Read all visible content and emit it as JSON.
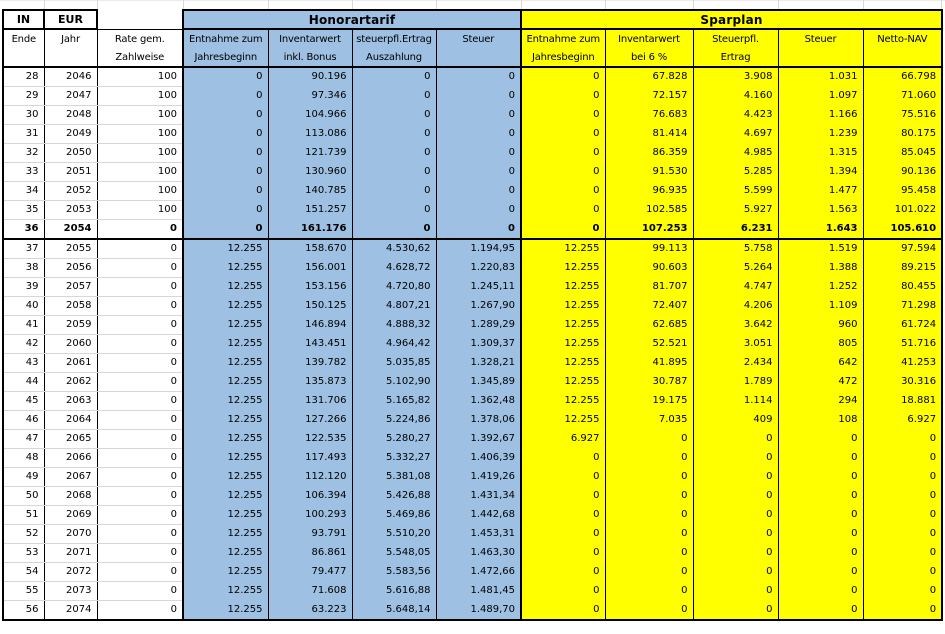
{
  "colors": {
    "honorartarif_fill": "#9EC1E3",
    "sparplan_fill": "#FFFF00",
    "grid_line": "#000000",
    "faint_row_line": "#D7D7D7"
  },
  "unit_header": {
    "col1": "IN",
    "col2": "EUR"
  },
  "row_header": {
    "ende": "Ende",
    "jahr": "Jahr",
    "rate_line1": "Rate gem.",
    "rate_line2": "Zahlweise"
  },
  "sections": {
    "honorartarif": {
      "title": "Honorartarif",
      "columns": [
        [
          "Entnahme zum",
          "Jahresbeginn"
        ],
        [
          "Inventarwert",
          "inkl. Bonus"
        ],
        [
          "steuerpfl.Ertrag",
          "Auszahlung"
        ],
        [
          "Steuer",
          ""
        ]
      ]
    },
    "sparplan": {
      "title": "Sparplan",
      "columns": [
        [
          "Entnahme zum",
          "Jahresbeginn"
        ],
        [
          "Inventarwert",
          "bei 6 %"
        ],
        [
          "Steuerpfl.",
          "Ertrag"
        ],
        [
          "Steuer",
          ""
        ],
        [
          "Netto-NAV",
          ""
        ]
      ]
    }
  },
  "rows": [
    {
      "ende": "28",
      "jahr": "2046",
      "rate": "100",
      "hono": [
        "0",
        "90.196",
        "0",
        "0"
      ],
      "spar": [
        "0",
        "67.828",
        "3.908",
        "1.031",
        "66.798"
      ],
      "bold": false
    },
    {
      "ende": "29",
      "jahr": "2047",
      "rate": "100",
      "hono": [
        "0",
        "97.346",
        "0",
        "0"
      ],
      "spar": [
        "0",
        "72.157",
        "4.160",
        "1.097",
        "71.060"
      ],
      "bold": false
    },
    {
      "ende": "30",
      "jahr": "2048",
      "rate": "100",
      "hono": [
        "0",
        "104.966",
        "0",
        "0"
      ],
      "spar": [
        "0",
        "76.683",
        "4.423",
        "1.166",
        "75.516"
      ],
      "bold": false
    },
    {
      "ende": "31",
      "jahr": "2049",
      "rate": "100",
      "hono": [
        "0",
        "113.086",
        "0",
        "0"
      ],
      "spar": [
        "0",
        "81.414",
        "4.697",
        "1.239",
        "80.175"
      ],
      "bold": false
    },
    {
      "ende": "32",
      "jahr": "2050",
      "rate": "100",
      "hono": [
        "0",
        "121.739",
        "0",
        "0"
      ],
      "spar": [
        "0",
        "86.359",
        "4.985",
        "1.315",
        "85.045"
      ],
      "bold": false
    },
    {
      "ende": "33",
      "jahr": "2051",
      "rate": "100",
      "hono": [
        "0",
        "130.960",
        "0",
        "0"
      ],
      "spar": [
        "0",
        "91.530",
        "5.285",
        "1.394",
        "90.136"
      ],
      "bold": false
    },
    {
      "ende": "34",
      "jahr": "2052",
      "rate": "100",
      "hono": [
        "0",
        "140.785",
        "0",
        "0"
      ],
      "spar": [
        "0",
        "96.935",
        "5.599",
        "1.477",
        "95.458"
      ],
      "bold": false
    },
    {
      "ende": "35",
      "jahr": "2053",
      "rate": "100",
      "hono": [
        "0",
        "151.257",
        "0",
        "0"
      ],
      "spar": [
        "0",
        "102.585",
        "5.927",
        "1.563",
        "101.022"
      ],
      "bold": false
    },
    {
      "ende": "36",
      "jahr": "2054",
      "rate": "0",
      "hono": [
        "0",
        "161.176",
        "0",
        "0"
      ],
      "spar": [
        "0",
        "107.253",
        "6.231",
        "1.643",
        "105.610"
      ],
      "bold": true
    },
    {
      "ende": "37",
      "jahr": "2055",
      "rate": "0",
      "hono": [
        "12.255",
        "158.670",
        "4.530,62",
        "1.194,95"
      ],
      "spar": [
        "12.255",
        "99.113",
        "5.758",
        "1.519",
        "97.594"
      ],
      "bold": false
    },
    {
      "ende": "38",
      "jahr": "2056",
      "rate": "0",
      "hono": [
        "12.255",
        "156.001",
        "4.628,72",
        "1.220,83"
      ],
      "spar": [
        "12.255",
        "90.603",
        "5.264",
        "1.388",
        "89.215"
      ],
      "bold": false
    },
    {
      "ende": "39",
      "jahr": "2057",
      "rate": "0",
      "hono": [
        "12.255",
        "153.156",
        "4.720,80",
        "1.245,11"
      ],
      "spar": [
        "12.255",
        "81.707",
        "4.747",
        "1.252",
        "80.455"
      ],
      "bold": false
    },
    {
      "ende": "40",
      "jahr": "2058",
      "rate": "0",
      "hono": [
        "12.255",
        "150.125",
        "4.807,21",
        "1.267,90"
      ],
      "spar": [
        "12.255",
        "72.407",
        "4.206",
        "1.109",
        "71.298"
      ],
      "bold": false
    },
    {
      "ende": "41",
      "jahr": "2059",
      "rate": "0",
      "hono": [
        "12.255",
        "146.894",
        "4.888,32",
        "1.289,29"
      ],
      "spar": [
        "12.255",
        "62.685",
        "3.642",
        "960",
        "61.724"
      ],
      "bold": false
    },
    {
      "ende": "42",
      "jahr": "2060",
      "rate": "0",
      "hono": [
        "12.255",
        "143.451",
        "4.964,42",
        "1.309,37"
      ],
      "spar": [
        "12.255",
        "52.521",
        "3.051",
        "805",
        "51.716"
      ],
      "bold": false
    },
    {
      "ende": "43",
      "jahr": "2061",
      "rate": "0",
      "hono": [
        "12.255",
        "139.782",
        "5.035,85",
        "1.328,21"
      ],
      "spar": [
        "12.255",
        "41.895",
        "2.434",
        "642",
        "41.253"
      ],
      "bold": false
    },
    {
      "ende": "44",
      "jahr": "2062",
      "rate": "0",
      "hono": [
        "12.255",
        "135.873",
        "5.102,90",
        "1.345,89"
      ],
      "spar": [
        "12.255",
        "30.787",
        "1.789",
        "472",
        "30.316"
      ],
      "bold": false
    },
    {
      "ende": "45",
      "jahr": "2063",
      "rate": "0",
      "hono": [
        "12.255",
        "131.706",
        "5.165,82",
        "1.362,48"
      ],
      "spar": [
        "12.255",
        "19.175",
        "1.114",
        "294",
        "18.881"
      ],
      "bold": false
    },
    {
      "ende": "46",
      "jahr": "2064",
      "rate": "0",
      "hono": [
        "12.255",
        "127.266",
        "5.224,86",
        "1.378,06"
      ],
      "spar": [
        "12.255",
        "7.035",
        "409",
        "108",
        "6.927"
      ],
      "bold": false
    },
    {
      "ende": "47",
      "jahr": "2065",
      "rate": "0",
      "hono": [
        "12.255",
        "122.535",
        "5.280,27",
        "1.392,67"
      ],
      "spar": [
        "6.927",
        "0",
        "0",
        "0",
        "0"
      ],
      "bold": false
    },
    {
      "ende": "48",
      "jahr": "2066",
      "rate": "0",
      "hono": [
        "12.255",
        "117.493",
        "5.332,27",
        "1.406,39"
      ],
      "spar": [
        "0",
        "0",
        "0",
        "0",
        "0"
      ],
      "bold": false
    },
    {
      "ende": "49",
      "jahr": "2067",
      "rate": "0",
      "hono": [
        "12.255",
        "112.120",
        "5.381,08",
        "1.419,26"
      ],
      "spar": [
        "0",
        "0",
        "0",
        "0",
        "0"
      ],
      "bold": false
    },
    {
      "ende": "50",
      "jahr": "2068",
      "rate": "0",
      "hono": [
        "12.255",
        "106.394",
        "5.426,88",
        "1.431,34"
      ],
      "spar": [
        "0",
        "0",
        "0",
        "0",
        "0"
      ],
      "bold": false
    },
    {
      "ende": "51",
      "jahr": "2069",
      "rate": "0",
      "hono": [
        "12.255",
        "100.293",
        "5.469,86",
        "1.442,68"
      ],
      "spar": [
        "0",
        "0",
        "0",
        "0",
        "0"
      ],
      "bold": false
    },
    {
      "ende": "52",
      "jahr": "2070",
      "rate": "0",
      "hono": [
        "12.255",
        "93.791",
        "5.510,20",
        "1.453,31"
      ],
      "spar": [
        "0",
        "0",
        "0",
        "0",
        "0"
      ],
      "bold": false
    },
    {
      "ende": "53",
      "jahr": "2071",
      "rate": "0",
      "hono": [
        "12.255",
        "86.861",
        "5.548,05",
        "1.463,30"
      ],
      "spar": [
        "0",
        "0",
        "0",
        "0",
        "0"
      ],
      "bold": false
    },
    {
      "ende": "54",
      "jahr": "2072",
      "rate": "0",
      "hono": [
        "12.255",
        "79.477",
        "5.583,56",
        "1.472,66"
      ],
      "spar": [
        "0",
        "0",
        "0",
        "0",
        "0"
      ],
      "bold": false
    },
    {
      "ende": "55",
      "jahr": "2073",
      "rate": "0",
      "hono": [
        "12.255",
        "71.608",
        "5.616,88",
        "1.481,45"
      ],
      "spar": [
        "0",
        "0",
        "0",
        "0",
        "0"
      ],
      "bold": false
    },
    {
      "ende": "56",
      "jahr": "2074",
      "rate": "0",
      "hono": [
        "12.255",
        "63.223",
        "5.648,14",
        "1.489,70"
      ],
      "spar": [
        "0",
        "0",
        "0",
        "0",
        "0"
      ],
      "bold": false
    }
  ]
}
